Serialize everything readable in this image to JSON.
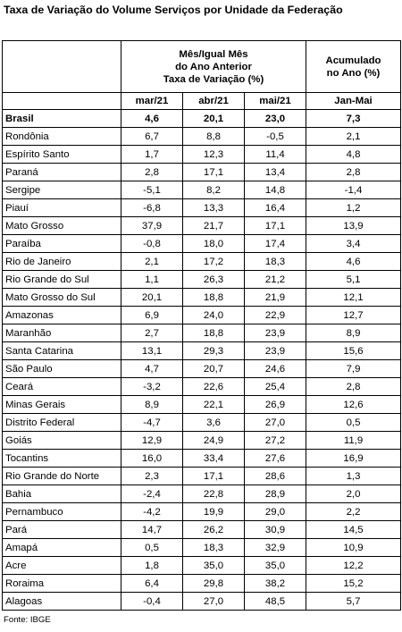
{
  "title": "Taxa de Variação do Volume Serviços por Unidade da Federação",
  "header": {
    "group1_line1": "Mês/Igual Mês",
    "group1_line2": "do Ano Anterior",
    "group1_line3": "Taxa de Variação (%)",
    "group2_line1": "Acumulado",
    "group2_line2": "no Ano (%)",
    "col_mar": "mar/21",
    "col_abr": "abr/21",
    "col_mai": "mai/21",
    "col_acc": "Jan-Mai"
  },
  "rows": [
    [
      "Brasil",
      "4,6",
      "20,1",
      "23,0",
      "7,3"
    ],
    [
      "Rondônia",
      "6,7",
      "8,8",
      "-0,5",
      "2,1"
    ],
    [
      "Espírito Santo",
      "1,7",
      "12,3",
      "11,4",
      "4,8"
    ],
    [
      "Paraná",
      "2,8",
      "17,1",
      "13,4",
      "2,8"
    ],
    [
      "Sergipe",
      "-5,1",
      "8,2",
      "14,8",
      "-1,4"
    ],
    [
      "Piauí",
      "-6,8",
      "13,3",
      "16,4",
      "1,2"
    ],
    [
      "Mato Grosso",
      "37,9",
      "21,7",
      "17,1",
      "13,9"
    ],
    [
      "Paraíba",
      "-0,8",
      "18,0",
      "17,4",
      "3,4"
    ],
    [
      "Rio de Janeiro",
      "2,1",
      "17,2",
      "18,3",
      "4,6"
    ],
    [
      "Rio Grande do Sul",
      "1,1",
      "26,3",
      "21,2",
      "5,1"
    ],
    [
      "Mato Grosso do Sul",
      "20,1",
      "18,8",
      "21,9",
      "12,1"
    ],
    [
      "Amazonas",
      "6,9",
      "24,0",
      "22,9",
      "12,7"
    ],
    [
      "Maranhão",
      "2,7",
      "18,8",
      "23,9",
      "8,9"
    ],
    [
      "Santa Catarina",
      "13,1",
      "29,3",
      "23,9",
      "15,6"
    ],
    [
      "São Paulo",
      "4,7",
      "20,7",
      "24,6",
      "7,9"
    ],
    [
      "Ceará",
      "-3,2",
      "22,6",
      "25,4",
      "2,8"
    ],
    [
      "Minas Gerais",
      "8,9",
      "22,1",
      "26,9",
      "12,6"
    ],
    [
      "Distrito Federal",
      "-4,7",
      "3,6",
      "27,0",
      "0,5"
    ],
    [
      "Goiás",
      "12,9",
      "24,9",
      "27,2",
      "11,9"
    ],
    [
      "Tocantins",
      "16,0",
      "33,4",
      "27,6",
      "16,9"
    ],
    [
      "Rio Grande do Norte",
      "2,3",
      "17,1",
      "28,6",
      "1,3"
    ],
    [
      "Bahia",
      "-2,4",
      "22,8",
      "28,9",
      "2,0"
    ],
    [
      "Pernambuco",
      "-4,2",
      "19,9",
      "29,0",
      "2,2"
    ],
    [
      "Pará",
      "14,7",
      "26,2",
      "30,9",
      "14,5"
    ],
    [
      "Amapá",
      "0,5",
      "18,3",
      "32,9",
      "10,9"
    ],
    [
      "Acre",
      "1,8",
      "35,0",
      "35,0",
      "12,2"
    ],
    [
      "Roraima",
      "6,4",
      "29,8",
      "38,2",
      "15,2"
    ],
    [
      "Alagoas",
      "-0,4",
      "27,0",
      "48,5",
      "5,7"
    ]
  ],
  "source": "Fonte: IBGE"
}
